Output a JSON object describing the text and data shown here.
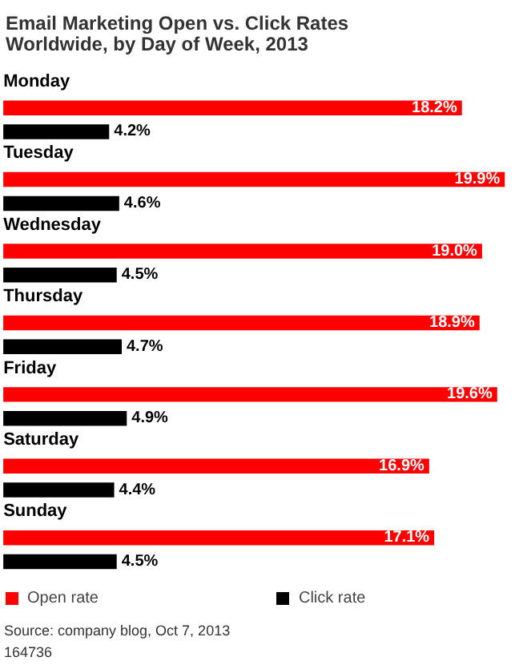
{
  "chart_data": {
    "type": "bar",
    "orientation": "horizontal",
    "title": "Email Marketing Open vs. Click Rates Worldwide, by Day of Week, 2013",
    "categories": [
      "Monday",
      "Tuesday",
      "Wednesday",
      "Thursday",
      "Friday",
      "Saturday",
      "Sunday"
    ],
    "series": [
      {
        "name": "Open rate",
        "color": "#ff0000",
        "values": [
          18.2,
          19.9,
          19.0,
          18.9,
          19.6,
          16.9,
          17.1
        ],
        "value_labels": [
          "18.2%",
          "19.9%",
          "19.0%",
          "18.9%",
          "19.6%",
          "16.9%",
          "17.1%"
        ]
      },
      {
        "name": "Click rate",
        "color": "#000000",
        "values": [
          4.2,
          4.6,
          4.5,
          4.7,
          4.9,
          4.4,
          4.5
        ],
        "value_labels": [
          "4.2%",
          "4.6%",
          "4.5%",
          "4.7%",
          "4.9%",
          "4.4%",
          "4.5%"
        ]
      }
    ],
    "legend": "bottom",
    "grid": false,
    "annotations": [
      "Source: company blog, Oct 7, 2013",
      "164736"
    ]
  }
}
